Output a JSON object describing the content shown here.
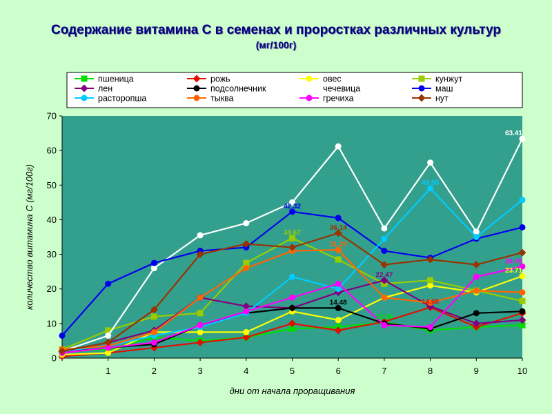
{
  "title": "Содержание витамина С в семенах и проростках различных культур",
  "subtitle": "(мг/100г)",
  "colors": {
    "background": "#ccffcc",
    "plot_area": "#33a08d",
    "title": "#000080"
  },
  "chart_data": {
    "type": "line",
    "xlabel": "дни от начала проращивания",
    "ylabel": "количество витамина С (мг/100г)",
    "x": [
      0,
      1,
      2,
      3,
      4,
      5,
      6,
      7,
      8,
      9,
      10
    ],
    "x_tick_labels": [
      "",
      "1",
      "2",
      "3",
      "4",
      "5",
      "6",
      "7",
      "8",
      "9",
      "10"
    ],
    "ylim": [
      0,
      70
    ],
    "y_ticks": [
      0,
      10,
      20,
      30,
      40,
      50,
      60,
      70
    ],
    "grid": false,
    "legend_position": "top",
    "series": [
      {
        "name": "пшеница",
        "color": "#00dd00",
        "marker": "square",
        "values": [
          2,
          2.5,
          6,
          5,
          6,
          8.5,
          9,
          10.36,
          8,
          9,
          9.5
        ]
      },
      {
        "name": "рожь",
        "color": "#dd1100",
        "marker": "diamond",
        "values": [
          0.5,
          1.5,
          3,
          4.5,
          6,
          10,
          8,
          10.5,
          14.68,
          9,
          13
        ]
      },
      {
        "name": "овес",
        "color": "#ffff00",
        "marker": "circle",
        "values": [
          1,
          1.5,
          7.5,
          7.5,
          7.5,
          13.5,
          11,
          17.5,
          21,
          19,
          23.71
        ]
      },
      {
        "name": "кунжут",
        "color": "#99cc00",
        "marker": "square",
        "values": [
          2.5,
          8,
          12,
          13,
          27.5,
          34.67,
          28.5,
          21.5,
          22.5,
          19.5,
          16.5
        ]
      },
      {
        "name": "лен",
        "color": "#800080",
        "marker": "diamond",
        "values": [
          2,
          4.5,
          8,
          17.5,
          15,
          14.5,
          19,
          22.47,
          15,
          10,
          11
        ]
      },
      {
        "name": "подсолнечник",
        "color": "#000000",
        "marker": "circle",
        "values": [
          2,
          3,
          4,
          9.5,
          13,
          14.5,
          14.48,
          10,
          8.5,
          13,
          13.5
        ]
      },
      {
        "name": "чечевица",
        "color": "#ffffff",
        "marker": "circle",
        "values": [
          2,
          6.5,
          26,
          35.5,
          39,
          45,
          61.2,
          37.5,
          56.5,
          36.5,
          63.41
        ]
      },
      {
        "name": "маш",
        "color": "#0000ee",
        "marker": "circle",
        "values": [
          6.5,
          21.5,
          27.5,
          31,
          32,
          42.32,
          40.5,
          31,
          29,
          34.5,
          37.8
        ]
      },
      {
        "name": "расторопша",
        "color": "#00ccff",
        "marker": "circle",
        "values": [
          2,
          3.5,
          6.5,
          9,
          13,
          23.5,
          20,
          34.5,
          49.05,
          35,
          45.7
        ]
      },
      {
        "name": "тыква",
        "color": "#ff6600",
        "marker": "circle",
        "values": [
          2.5,
          3.5,
          7.5,
          17.5,
          26,
          31,
          31.29,
          17.5,
          16,
          19.5,
          19
        ]
      },
      {
        "name": "гречиха",
        "color": "#ff00ff",
        "marker": "circle",
        "values": [
          1.5,
          3,
          4.5,
          9.5,
          13.5,
          17.5,
          21.5,
          9.5,
          9,
          23.5,
          26.5
        ]
      },
      {
        "name": "нут",
        "color": "#993300",
        "marker": "diamond",
        "values": [
          2,
          4.5,
          14,
          30,
          33,
          32,
          36.14,
          27,
          28.5,
          27,
          30.5
        ]
      }
    ],
    "annotations": [
      {
        "text": "63.41",
        "x": 10,
        "y": 63.41,
        "color": "#ffffff"
      },
      {
        "text": "49.05",
        "x": 8,
        "y": 49.05,
        "color": "#00ccff"
      },
      {
        "text": "42.32",
        "x": 5,
        "y": 42.32,
        "color": "#0000ee"
      },
      {
        "text": "34.67",
        "x": 5,
        "y": 34.67,
        "color": "#99cc00"
      },
      {
        "text": "36.14",
        "x": 6,
        "y": 36.14,
        "color": "#993300"
      },
      {
        "text": "31.29",
        "x": 6,
        "y": 31.29,
        "color": "#ff6600"
      },
      {
        "text": "14.48",
        "x": 6,
        "y": 14.48,
        "color": "#000000"
      },
      {
        "text": "22.47",
        "x": 7,
        "y": 22.47,
        "color": "#800080"
      },
      {
        "text": "10.36",
        "x": 7,
        "y": 10.36,
        "color": "#00dd00"
      },
      {
        "text": "14.68",
        "x": 8,
        "y": 14.68,
        "color": "#dd1100"
      },
      {
        "text": "23.71",
        "x": 10,
        "y": 23.71,
        "color": "#ffff00"
      },
      {
        "text": "26.46",
        "x": 10,
        "y": 26.46,
        "color": "#ff00ff"
      }
    ]
  }
}
